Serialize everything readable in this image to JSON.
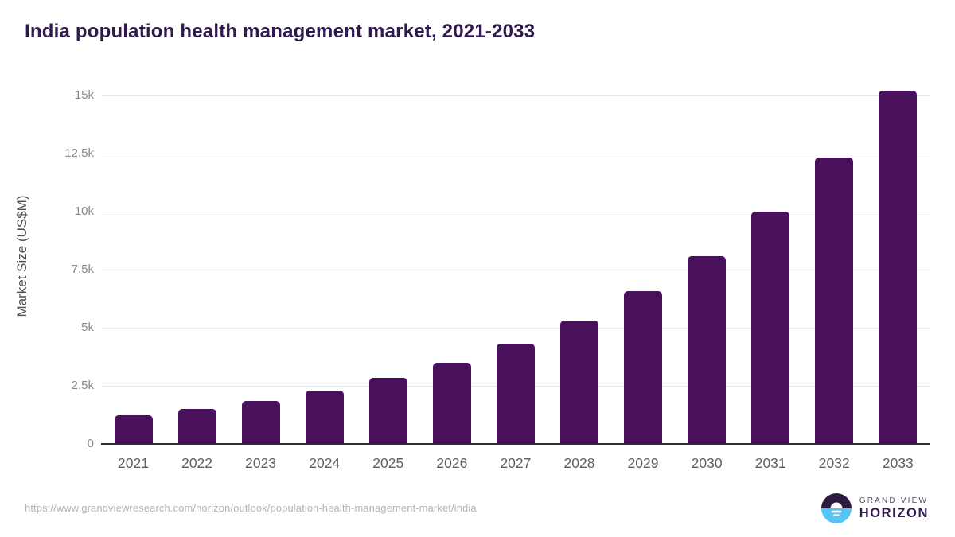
{
  "chart": {
    "title": "India population health management market, 2021-2033",
    "y_axis_label": "Market Size (US$M)"
  },
  "chart_data": {
    "type": "bar",
    "title": "India population health management market, 2021-2033",
    "xlabel": "",
    "ylabel": "Market Size (US$M)",
    "unit": "US$M",
    "categories": [
      "2021",
      "2022",
      "2023",
      "2024",
      "2025",
      "2026",
      "2027",
      "2028",
      "2029",
      "2030",
      "2031",
      "2032",
      "2033"
    ],
    "values": [
      1220,
      1505,
      1857,
      2292,
      2829,
      3490,
      4307,
      5315,
      6559,
      8087,
      9979,
      12314,
      15195
    ],
    "ylim": [
      0,
      15500
    ],
    "y_ticks": [
      {
        "value": 0,
        "label": "0"
      },
      {
        "value": 2500,
        "label": "2.5k"
      },
      {
        "value": 5000,
        "label": "5k"
      },
      {
        "value": 7500,
        "label": "7.5k"
      },
      {
        "value": 10000,
        "label": "10k"
      },
      {
        "value": 12500,
        "label": "12.5k"
      },
      {
        "value": 15000,
        "label": "15k"
      }
    ],
    "grid": true,
    "legend": false,
    "bar_color": "#49105c"
  },
  "colors": {
    "title": "#301a4d",
    "bar": "#49105c",
    "gridline": "#e9e9e9",
    "axis_line": "#2e2e2e",
    "y_tick_label": "#8a8a8a",
    "x_tick_label": "#5f5f5f",
    "source_url": "#b4b4b4",
    "logo_dark": "#2b1b41",
    "logo_blue": "#58c4f5"
  },
  "footer": {
    "source_url": "https://www.grandviewresearch.com/horizon/outlook/population-health-management-market/india",
    "brand_top": "GRAND VIEW",
    "brand_bottom": "HORIZON"
  }
}
